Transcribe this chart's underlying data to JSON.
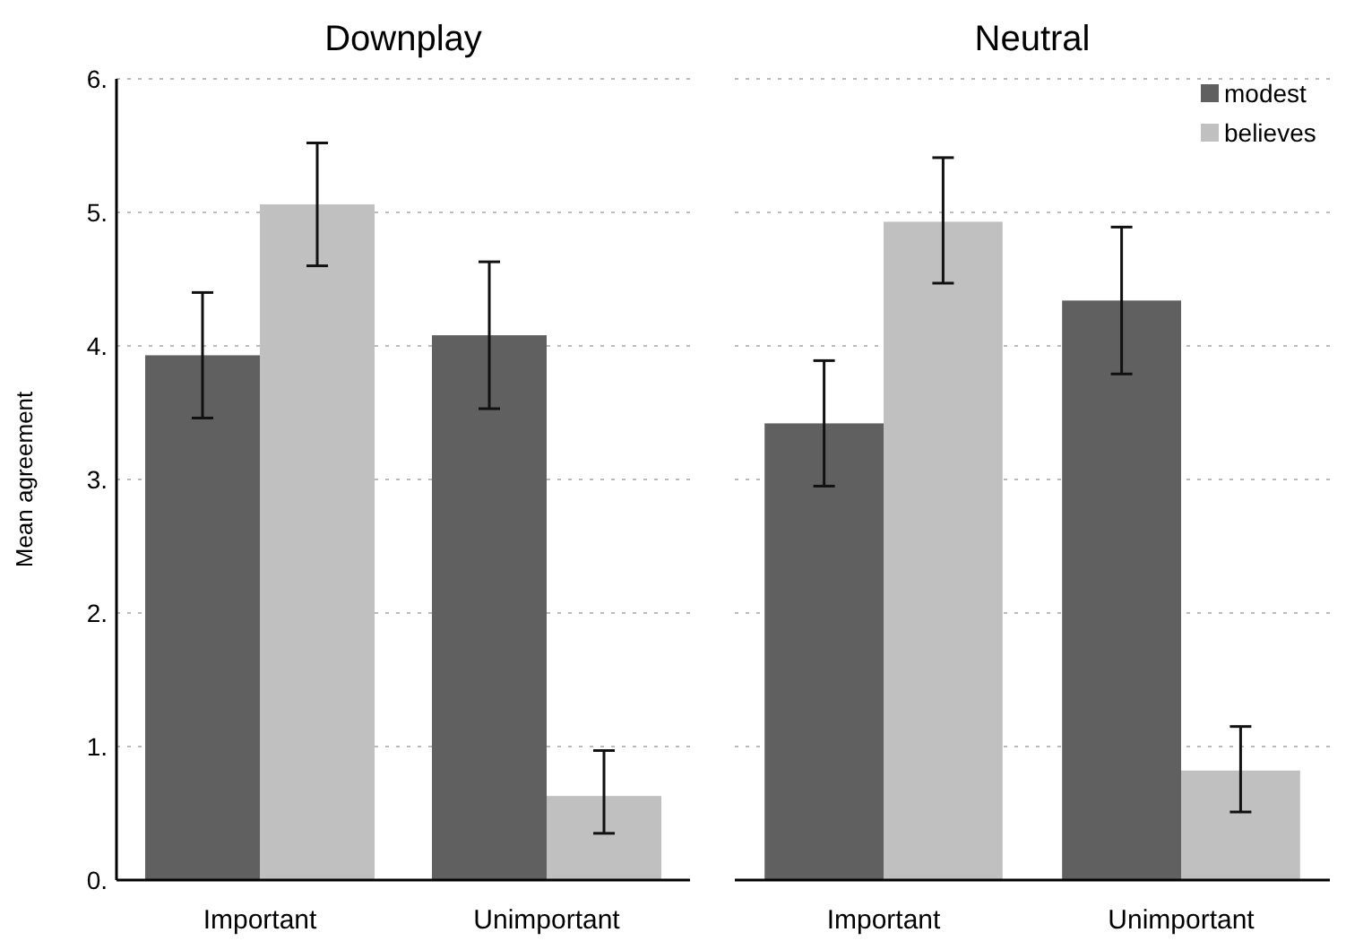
{
  "chart_data": [
    {
      "type": "bar",
      "title": "Downplay",
      "ylabel": "Mean agreement",
      "categories": [
        "Important",
        "Unimportant"
      ],
      "ylim": [
        0,
        6
      ],
      "yticks": [
        {
          "value": 0,
          "label": "0."
        },
        {
          "value": 1,
          "label": "1."
        },
        {
          "value": 2,
          "label": "2."
        },
        {
          "value": 3,
          "label": "3."
        },
        {
          "value": 4,
          "label": "4."
        },
        {
          "value": 5,
          "label": "5."
        },
        {
          "value": 6,
          "label": "6."
        }
      ],
      "grid": "y",
      "legend": false,
      "series": [
        {
          "color": "#606060",
          "values": [
            3.93,
            4.08
          ],
          "errors": [
            [
              3.46,
              4.4
            ],
            [
              3.53,
              4.63
            ]
          ]
        },
        {
          "color": "#c0c0c0",
          "values": [
            5.06,
            0.63
          ],
          "errors": [
            [
              4.6,
              5.52
            ],
            [
              0.35,
              0.97
            ]
          ]
        }
      ]
    },
    {
      "type": "bar",
      "title": "Neutral",
      "categories": [
        "Important",
        "Unimportant"
      ],
      "ylim": [
        0,
        6
      ],
      "yticks": [
        {
          "value": 0,
          "label": null
        },
        {
          "value": 1,
          "label": null
        },
        {
          "value": 2,
          "label": null
        },
        {
          "value": 3,
          "label": null
        },
        {
          "value": 4,
          "label": null
        },
        {
          "value": 5,
          "label": null
        },
        {
          "value": 6,
          "label": null
        }
      ],
      "grid": "y",
      "legend": "top right",
      "tick_labels": "x",
      "series": [
        {
          "name": "modest",
          "color": "#606060",
          "values": [
            3.42,
            4.34
          ],
          "errors": [
            [
              2.95,
              3.89
            ],
            [
              3.79,
              4.89
            ]
          ]
        },
        {
          "name": "believes",
          "color": "#c0c0c0",
          "values": [
            4.93,
            0.82
          ],
          "errors": [
            [
              4.47,
              5.41
            ],
            [
              0.51,
              1.15
            ]
          ]
        }
      ]
    }
  ]
}
